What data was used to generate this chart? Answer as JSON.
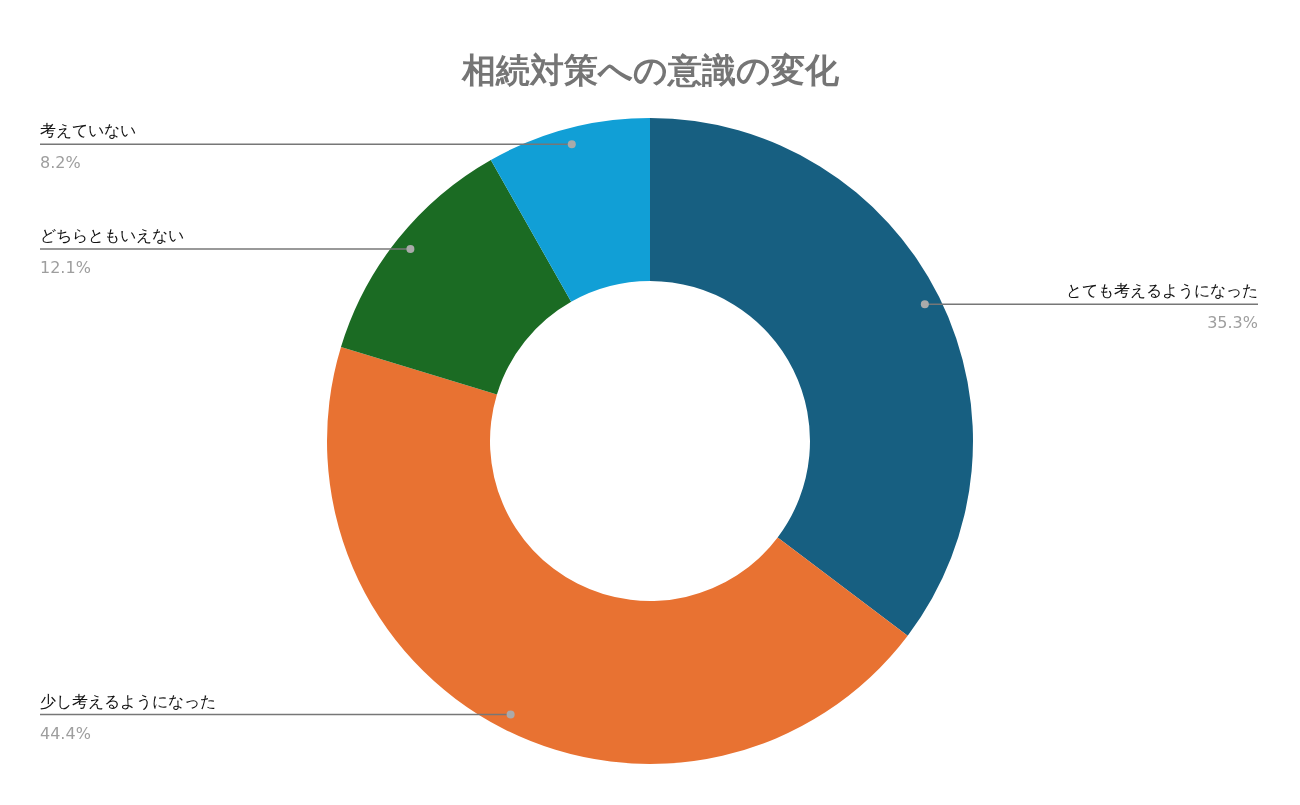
{
  "chart_data": {
    "type": "donut",
    "title": "相続対策への意識の変化",
    "categories": [
      "とても考えるようになった",
      "少し考えるようになった",
      "どちらともいえない",
      "考えていない"
    ],
    "values": [
      35.3,
      44.4,
      12.1,
      8.2
    ],
    "value_labels": [
      "35.3%",
      "44.4%",
      "12.1%",
      "8.2%"
    ],
    "colors": [
      "#175f81",
      "#e87232",
      "#1b6b23",
      "#119fd6"
    ]
  }
}
